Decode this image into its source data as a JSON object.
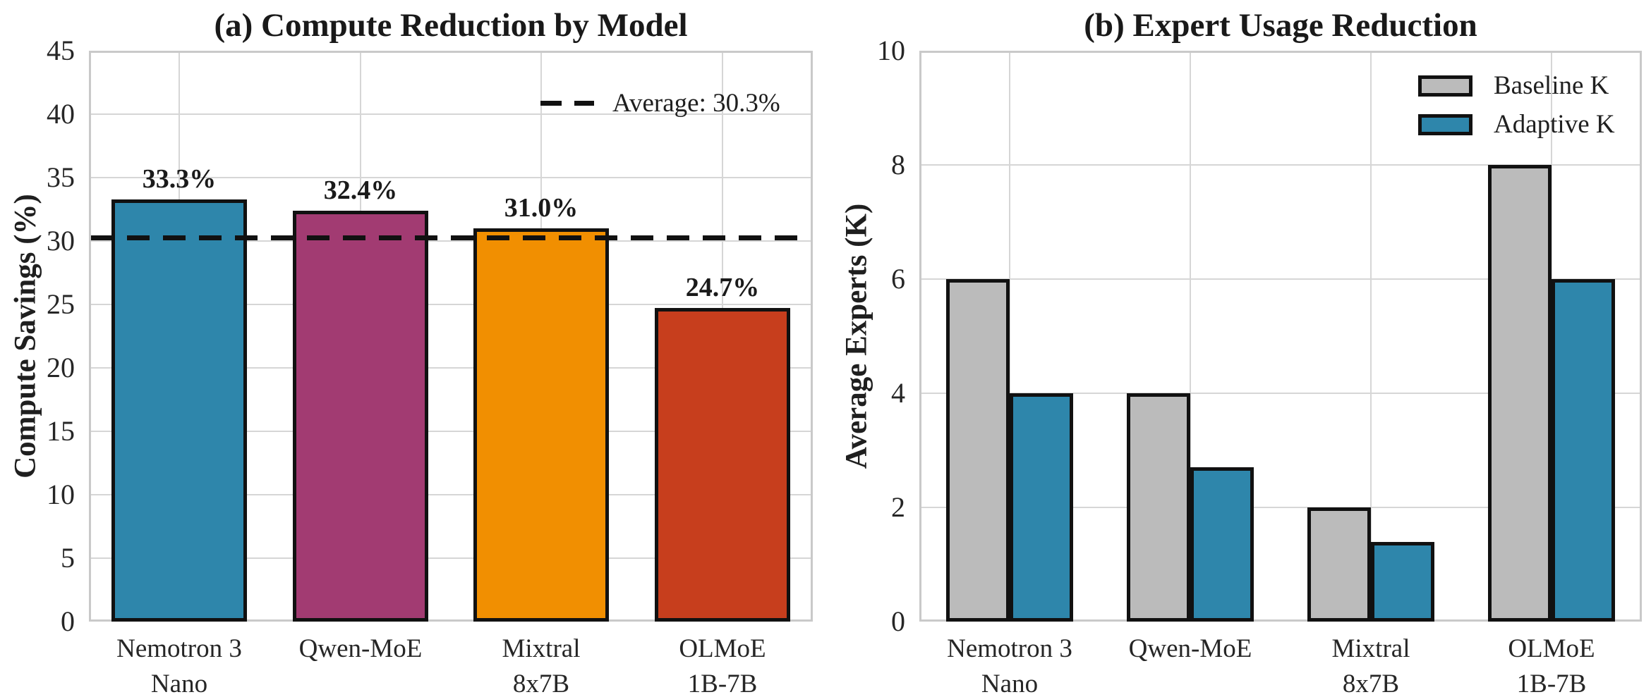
{
  "figure": {
    "background": "#ffffff",
    "text_color": "#1a1a1a"
  },
  "chart_data": [
    {
      "panel": "a",
      "type": "bar",
      "title": "(a) Compute Reduction by Model",
      "xlabel": "",
      "ylabel": "Compute Savings (%)",
      "categories": [
        "Nemotron 3\nNano",
        "Qwen-MoE",
        "Mixtral\n8x7B",
        "OLMoE\n1B-7B"
      ],
      "values": [
        33.3,
        32.4,
        31.0,
        24.7
      ],
      "value_labels": [
        "33.3%",
        "32.4%",
        "31.0%",
        "24.7%"
      ],
      "bar_colors": [
        "#2E86AB",
        "#A23B72",
        "#F18F01",
        "#C73E1D"
      ],
      "bar_edge_color": "#111111",
      "ylim": [
        0,
        45
      ],
      "yticks": [
        0,
        5,
        10,
        15,
        20,
        25,
        30,
        35,
        40,
        45
      ],
      "grid": true,
      "average_line": {
        "value": 30.3,
        "label": "Average: 30.3%",
        "color": "#111111",
        "style": "dashed"
      },
      "legend_position": "upper right"
    },
    {
      "panel": "b",
      "type": "bar",
      "title": "(b) Expert Usage Reduction",
      "xlabel": "",
      "ylabel": "Average Experts (K)",
      "categories": [
        "Nemotron 3\nNano",
        "Qwen-MoE",
        "Mixtral\n8x7B",
        "OLMoE\n1B-7B"
      ],
      "series": [
        {
          "name": "Baseline K",
          "color": "#BBBBBB",
          "values": [
            6,
            4,
            2,
            8
          ]
        },
        {
          "name": "Adaptive K",
          "color": "#2E86AB",
          "values": [
            4,
            2.7,
            1.4,
            6
          ]
        }
      ],
      "bar_edge_color": "#111111",
      "ylim": [
        0,
        10
      ],
      "yticks": [
        0,
        2,
        4,
        6,
        8,
        10
      ],
      "grid": true,
      "legend_position": "upper right"
    }
  ]
}
